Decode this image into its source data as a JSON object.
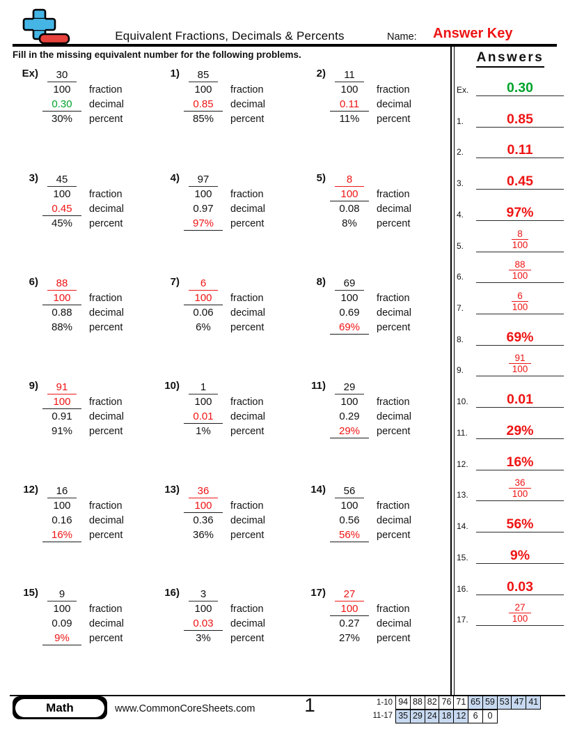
{
  "colors": {
    "answer_red": "#ee1414",
    "example_green": "#00a32a",
    "cell_blue": "#c7d9f0",
    "logo_blue": "#45b5e6",
    "logo_red": "#e8423c"
  },
  "header": {
    "title": "Equivalent Fractions, Decimals & Percents",
    "name_label": "Name:",
    "name_value": "Answer Key",
    "instruction": "Fill in the missing equivalent number for the following problems."
  },
  "labels": {
    "fraction": "fraction",
    "decimal": "decimal",
    "percent": "percent"
  },
  "problems": [
    {
      "id": "Ex)",
      "numerator": "30",
      "denominator": "100",
      "decimal": "0.30",
      "percent": "30%",
      "answer_field": "decimal",
      "is_example": true
    },
    {
      "id": "1)",
      "numerator": "85",
      "denominator": "100",
      "decimal": "0.85",
      "percent": "85%",
      "answer_field": "decimal"
    },
    {
      "id": "2)",
      "numerator": "11",
      "denominator": "100",
      "decimal": "0.11",
      "percent": "11%",
      "answer_field": "decimal"
    },
    {
      "id": "3)",
      "numerator": "45",
      "denominator": "100",
      "decimal": "0.45",
      "percent": "45%",
      "answer_field": "decimal"
    },
    {
      "id": "4)",
      "numerator": "97",
      "denominator": "100",
      "decimal": "0.97",
      "percent": "97%",
      "answer_field": "percent"
    },
    {
      "id": "5)",
      "numerator": "8",
      "denominator": "100",
      "decimal": "0.08",
      "percent": "8%",
      "answer_field": "fraction"
    },
    {
      "id": "6)",
      "numerator": "88",
      "denominator": "100",
      "decimal": "0.88",
      "percent": "88%",
      "answer_field": "fraction"
    },
    {
      "id": "7)",
      "numerator": "6",
      "denominator": "100",
      "decimal": "0.06",
      "percent": "6%",
      "answer_field": "fraction"
    },
    {
      "id": "8)",
      "numerator": "69",
      "denominator": "100",
      "decimal": "0.69",
      "percent": "69%",
      "answer_field": "percent"
    },
    {
      "id": "9)",
      "numerator": "91",
      "denominator": "100",
      "decimal": "0.91",
      "percent": "91%",
      "answer_field": "fraction"
    },
    {
      "id": "10)",
      "numerator": "1",
      "denominator": "100",
      "decimal": "0.01",
      "percent": "1%",
      "answer_field": "decimal"
    },
    {
      "id": "11)",
      "numerator": "29",
      "denominator": "100",
      "decimal": "0.29",
      "percent": "29%",
      "answer_field": "percent"
    },
    {
      "id": "12)",
      "numerator": "16",
      "denominator": "100",
      "decimal": "0.16",
      "percent": "16%",
      "answer_field": "percent"
    },
    {
      "id": "13)",
      "numerator": "36",
      "denominator": "100",
      "decimal": "0.36",
      "percent": "36%",
      "answer_field": "fraction"
    },
    {
      "id": "14)",
      "numerator": "56",
      "denominator": "100",
      "decimal": "0.56",
      "percent": "56%",
      "answer_field": "percent"
    },
    {
      "id": "15)",
      "numerator": "9",
      "denominator": "100",
      "decimal": "0.09",
      "percent": "9%",
      "answer_field": "percent"
    },
    {
      "id": "16)",
      "numerator": "3",
      "denominator": "100",
      "decimal": "0.03",
      "percent": "3%",
      "answer_field": "decimal"
    },
    {
      "id": "17)",
      "numerator": "27",
      "denominator": "100",
      "decimal": "0.27",
      "percent": "27%",
      "answer_field": "fraction"
    }
  ],
  "answers_panel": {
    "title": "Answers",
    "items": [
      {
        "label": "Ex.",
        "answer_type": "decimal",
        "value": "0.30",
        "is_example": true
      },
      {
        "label": "1.",
        "answer_type": "decimal",
        "value": "0.85"
      },
      {
        "label": "2.",
        "answer_type": "decimal",
        "value": "0.11"
      },
      {
        "label": "3.",
        "answer_type": "decimal",
        "value": "0.45"
      },
      {
        "label": "4.",
        "answer_type": "percent",
        "value": "97%"
      },
      {
        "label": "5.",
        "answer_type": "fraction",
        "numerator": "8",
        "denominator": "100"
      },
      {
        "label": "6.",
        "answer_type": "fraction",
        "numerator": "88",
        "denominator": "100"
      },
      {
        "label": "7.",
        "answer_type": "fraction",
        "numerator": "6",
        "denominator": "100"
      },
      {
        "label": "8.",
        "answer_type": "percent",
        "value": "69%"
      },
      {
        "label": "9.",
        "answer_type": "fraction",
        "numerator": "91",
        "denominator": "100"
      },
      {
        "label": "10.",
        "answer_type": "decimal",
        "value": "0.01"
      },
      {
        "label": "11.",
        "answer_type": "percent",
        "value": "29%"
      },
      {
        "label": "12.",
        "answer_type": "percent",
        "value": "16%"
      },
      {
        "label": "13.",
        "answer_type": "fraction",
        "numerator": "36",
        "denominator": "100"
      },
      {
        "label": "14.",
        "answer_type": "percent",
        "value": "56%"
      },
      {
        "label": "15.",
        "answer_type": "percent",
        "value": "9%"
      },
      {
        "label": "16.",
        "answer_type": "decimal",
        "value": "0.03"
      },
      {
        "label": "17.",
        "answer_type": "fraction",
        "numerator": "27",
        "denominator": "100"
      }
    ]
  },
  "footer": {
    "subject": "Math",
    "website": "www.CommonCoreSheets.com",
    "page_number": "1",
    "score_table": {
      "rows": [
        {
          "label": "1-10",
          "cells": [
            {
              "v": "94"
            },
            {
              "v": "88"
            },
            {
              "v": "82"
            },
            {
              "v": "76"
            },
            {
              "v": "71"
            },
            {
              "v": "65",
              "hl": true
            },
            {
              "v": "59",
              "hl": true
            },
            {
              "v": "53",
              "hl": true
            },
            {
              "v": "47",
              "hl": true
            },
            {
              "v": "41",
              "hl": true
            }
          ]
        },
        {
          "label": "11-17",
          "cells": [
            {
              "v": "35",
              "hl": true
            },
            {
              "v": "29",
              "hl": true
            },
            {
              "v": "24",
              "hl": true
            },
            {
              "v": "18",
              "hl": true
            },
            {
              "v": "12",
              "hl": true
            },
            {
              "v": "6"
            },
            {
              "v": "0"
            }
          ]
        }
      ]
    }
  }
}
